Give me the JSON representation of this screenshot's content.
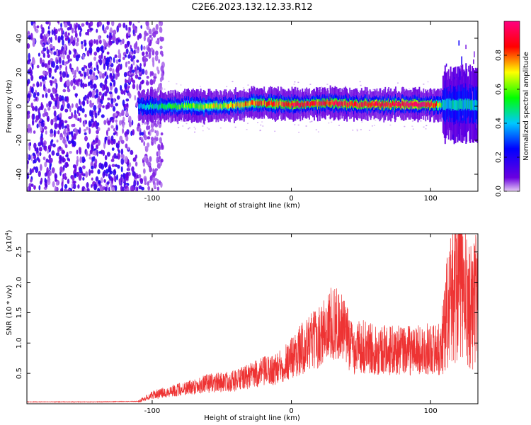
{
  "title": "C2E6.2023.132.12.33.R12",
  "chart_data": [
    {
      "type": "heatmap",
      "xlabel": "Height of straight line (km)",
      "ylabel": "Frequency (Hz)",
      "xlim": [
        -190,
        134
      ],
      "ylim": [
        -50,
        50
      ],
      "xticks": [
        -100,
        0,
        100
      ],
      "xtick_labels": [
        "-100",
        "0",
        "100"
      ],
      "yticks": [
        -40,
        -20,
        0,
        20,
        40
      ],
      "ytick_labels": [
        "-40",
        "-20",
        "0",
        "20",
        "40"
      ],
      "colorbar": {
        "label": "Normalized spectral amplitude",
        "range": [
          0,
          1
        ],
        "ticks": [
          0.0,
          0.2,
          0.4,
          0.6,
          0.8
        ],
        "tick_labels": [
          "0.0",
          "0.2",
          "0.4",
          "0.6",
          "0.8"
        ],
        "colormap": [
          "#e6ccf5",
          "#6a00e0",
          "#0000ff",
          "#00c8ff",
          "#00ff00",
          "#ffff00",
          "#ff0000",
          "#ff0080"
        ]
      },
      "noise_region_x": [
        -190,
        -100
      ],
      "signal_band": {
        "x": [
          -110,
          -80,
          -50,
          -25,
          0,
          25,
          45,
          60,
          100,
          110
        ],
        "center_freq": [
          0,
          0,
          0,
          2,
          1,
          2,
          1,
          1,
          1,
          1
        ],
        "peak_amplitude": [
          0.4,
          0.6,
          0.7,
          0.8,
          0.9,
          0.9,
          0.9,
          0.95,
          0.95,
          0.5
        ]
      },
      "grid": false,
      "legend": "colorbar-right"
    },
    {
      "type": "line",
      "xlabel": "Height of straight line (km)",
      "ylabel": "SNR (10 * v/v)",
      "y_multiplier": "(x10",
      "y_multiplier_exp": "4",
      "xlim": [
        -190,
        134
      ],
      "ylim": [
        0,
        2.8
      ],
      "xticks": [
        -100,
        0,
        100
      ],
      "xtick_labels": [
        "-100",
        "0",
        "100"
      ],
      "yticks": [
        0.5,
        1.0,
        1.5,
        2.0,
        2.5
      ],
      "ytick_labels": [
        "0.5",
        "1.0",
        "1.5",
        "2.0",
        "2.5"
      ],
      "series": [
        {
          "color": "#ee3333",
          "x": [
            -190,
            -140,
            -110,
            -100,
            -90,
            -80,
            -60,
            -40,
            -20,
            -10,
            0,
            10,
            20,
            25,
            30,
            35,
            40,
            45,
            50,
            55,
            60,
            70,
            80,
            90,
            100,
            105,
            108,
            110,
            115,
            120,
            125,
            130,
            134
          ],
          "y": [
            0.03,
            0.03,
            0.04,
            0.15,
            0.2,
            0.25,
            0.35,
            0.4,
            0.55,
            0.6,
            0.8,
            1.0,
            1.15,
            1.3,
            1.4,
            1.35,
            1.15,
            0.95,
            1.0,
            0.95,
            0.95,
            0.92,
            0.92,
            0.92,
            0.95,
            0.95,
            0.9,
            1.3,
            1.6,
            2.0,
            1.6,
            1.5,
            1.7
          ]
        }
      ],
      "grid": false
    }
  ]
}
